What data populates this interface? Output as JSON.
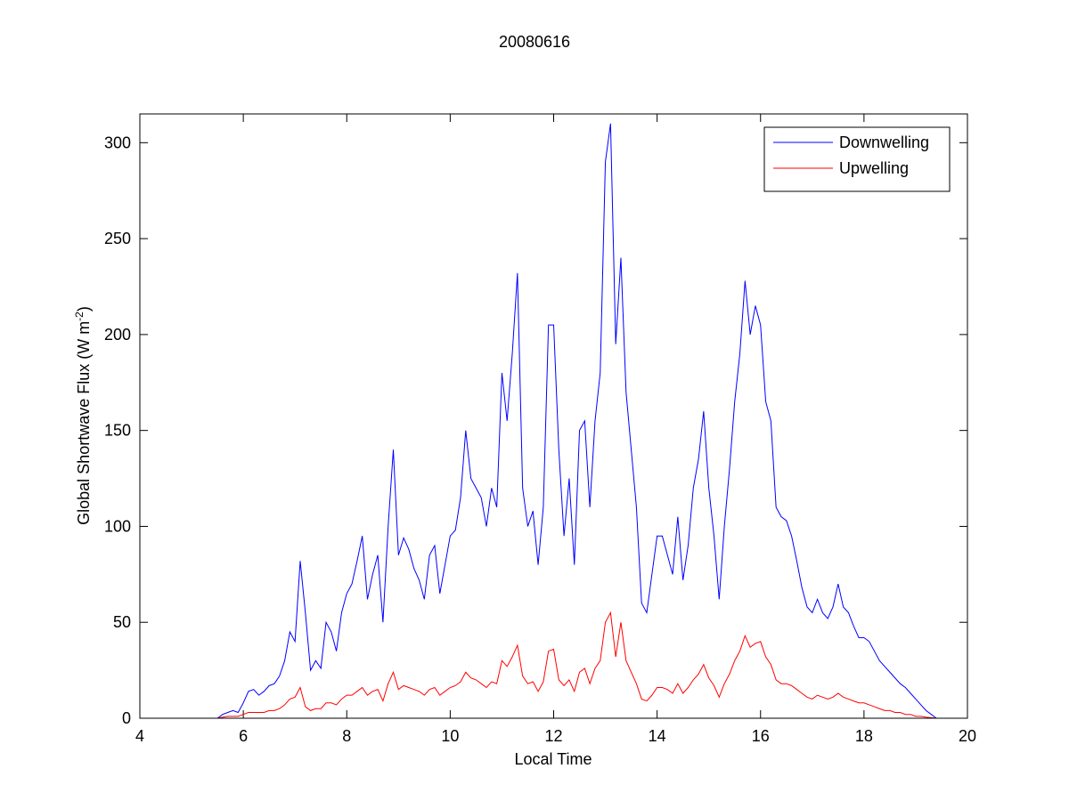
{
  "chart_data": {
    "type": "line",
    "title": "20080616",
    "x_label": "Local Time",
    "y_label": "Global Shortwave Flux (W m",
    "y_label_sup": "-2",
    "y_label_end": ")",
    "xlim": [
      4,
      20
    ],
    "xticks": [
      4,
      6,
      8,
      10,
      12,
      14,
      16,
      18,
      20
    ],
    "ylim": [
      0,
      315
    ],
    "yticks": [
      0,
      50,
      100,
      150,
      200,
      250,
      300
    ],
    "grid": false,
    "legend": "upper right",
    "x": [
      4,
      5,
      5.5,
      5.6,
      5.7,
      5.8,
      5.9,
      6,
      6.1,
      6.2,
      6.3,
      6.4,
      6.5,
      6.6,
      6.7,
      6.8,
      6.9,
      7,
      7.1,
      7.2,
      7.3,
      7.4,
      7.5,
      7.6,
      7.7,
      7.8,
      7.9,
      8,
      8.1,
      8.2,
      8.3,
      8.4,
      8.5,
      8.6,
      8.7,
      8.8,
      8.9,
      9,
      9.1,
      9.2,
      9.3,
      9.4,
      9.5,
      9.6,
      9.7,
      9.8,
      9.9,
      10,
      10.1,
      10.2,
      10.3,
      10.4,
      10.5,
      10.6,
      10.7,
      10.8,
      10.9,
      11,
      11.1,
      11.2,
      11.3,
      11.4,
      11.5,
      11.6,
      11.7,
      11.8,
      11.9,
      12,
      12.1,
      12.2,
      12.3,
      12.4,
      12.5,
      12.6,
      12.7,
      12.8,
      12.9,
      13,
      13.1,
      13.2,
      13.3,
      13.4,
      13.5,
      13.6,
      13.7,
      13.8,
      13.9,
      14,
      14.1,
      14.2,
      14.3,
      14.4,
      14.5,
      14.6,
      14.7,
      14.8,
      14.9,
      15,
      15.1,
      15.2,
      15.3,
      15.4,
      15.5,
      15.6,
      15.7,
      15.8,
      15.9,
      16,
      16.1,
      16.2,
      16.3,
      16.4,
      16.5,
      16.6,
      16.7,
      16.8,
      16.9,
      17,
      17.1,
      17.2,
      17.3,
      17.4,
      17.5,
      17.6,
      17.7,
      17.8,
      17.9,
      18,
      18.1,
      18.2,
      18.3,
      18.4,
      18.5,
      18.6,
      18.7,
      18.8,
      18.9,
      19,
      19.1,
      19.2,
      19.3,
      19.4
    ],
    "series": [
      {
        "name": "Downwelling",
        "color": "#0000ff",
        "values": [
          0,
          0,
          0,
          2,
          3,
          4,
          3,
          8,
          14,
          15,
          12,
          14,
          17,
          18,
          22,
          30,
          45,
          40,
          82,
          55,
          25,
          30,
          26,
          50,
          45,
          35,
          55,
          65,
          70,
          82,
          95,
          62,
          75,
          85,
          50,
          100,
          140,
          85,
          94,
          88,
          78,
          72,
          62,
          85,
          90,
          65,
          80,
          95,
          98,
          115,
          150,
          125,
          120,
          115,
          100,
          120,
          110,
          180,
          155,
          190,
          232,
          120,
          100,
          108,
          80,
          110,
          205,
          205,
          140,
          95,
          125,
          80,
          150,
          155,
          110,
          155,
          180,
          290,
          310,
          195,
          240,
          170,
          140,
          110,
          60,
          55,
          75,
          95,
          95,
          85,
          75,
          105,
          72,
          90,
          120,
          135,
          160,
          120,
          95,
          62,
          100,
          130,
          165,
          190,
          228,
          200,
          215,
          205,
          165,
          155,
          110,
          105,
          103,
          95,
          82,
          68,
          58,
          55,
          62,
          55,
          52,
          58,
          70,
          58,
          55,
          48,
          42,
          42,
          40,
          35,
          30,
          27,
          24,
          21,
          18,
          16,
          13,
          10,
          7,
          4,
          2,
          0
        ]
      },
      {
        "name": "Upwelling",
        "color": "#ff0000",
        "values": [
          0,
          0,
          0,
          0.5,
          1,
          1,
          1,
          2,
          3,
          3,
          3,
          3,
          4,
          4,
          5,
          7,
          10,
          11,
          16,
          6,
          4,
          5,
          5,
          8,
          8,
          7,
          10,
          12,
          12,
          14,
          16,
          12,
          14,
          15,
          9,
          18,
          24,
          15,
          17,
          16,
          15,
          14,
          12,
          15,
          16,
          12,
          14,
          16,
          17,
          19,
          24,
          21,
          20,
          18,
          16,
          19,
          18,
          30,
          27,
          32,
          38,
          22,
          18,
          19,
          14,
          19,
          35,
          36,
          20,
          17,
          20,
          14,
          24,
          26,
          18,
          26,
          30,
          50,
          55,
          32,
          50,
          30,
          24,
          18,
          10,
          9,
          12,
          16,
          16,
          15,
          13,
          18,
          13,
          16,
          20,
          23,
          28,
          21,
          17,
          11,
          18,
          23,
          30,
          35,
          43,
          37,
          39,
          40,
          32,
          28,
          20,
          18,
          18,
          17,
          15,
          13,
          11,
          10,
          12,
          11,
          10,
          11,
          13,
          11,
          10,
          9,
          8,
          8,
          7,
          6,
          5,
          4,
          4,
          3,
          3,
          2,
          2,
          1,
          1,
          0.5,
          0.3,
          0
        ]
      }
    ]
  }
}
